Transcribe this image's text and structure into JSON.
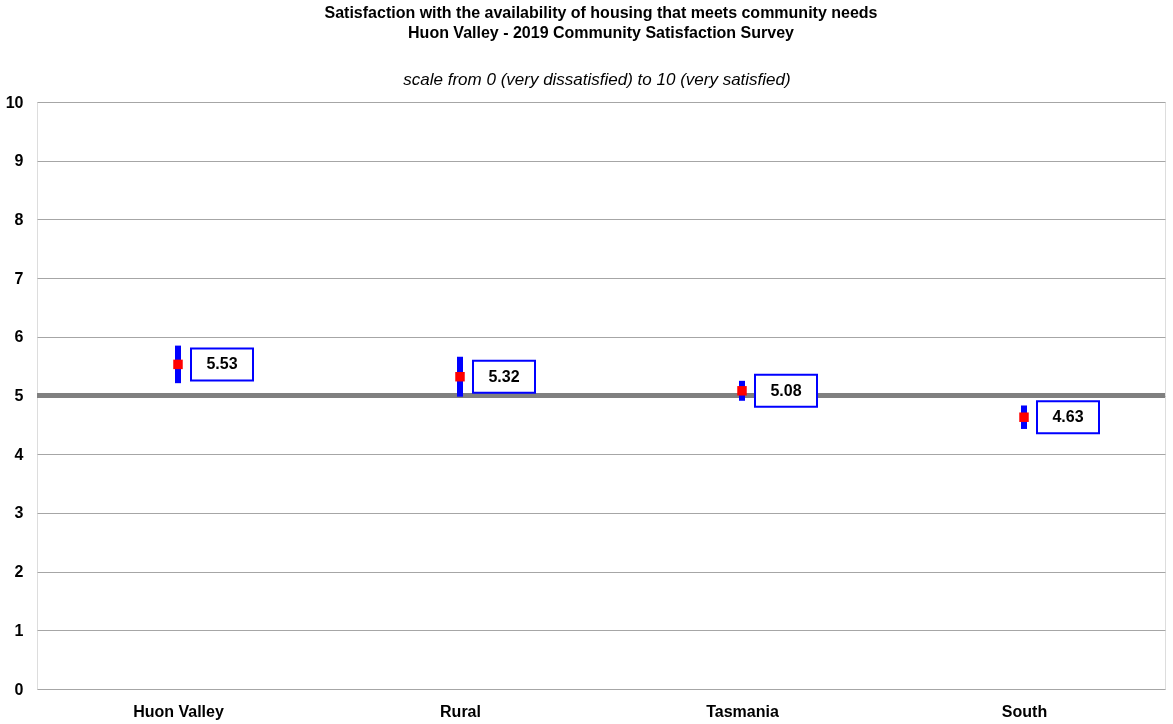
{
  "chart_data": {
    "type": "scatter",
    "title": "Satisfaction  with the availability  of housing that meets community needs",
    "subtitle": "Huon Valley - 2019 Community Satisfaction  Survey",
    "annotations": [
      "scale from 0 (very dissatisfied) to 10 (very satisfied)"
    ],
    "categories": [
      "Huon Valley",
      "Rural",
      "Tasmania",
      "South"
    ],
    "series": [
      {
        "color": "#ff0000",
        "values": [
          5.53,
          5.32,
          5.08,
          4.63
        ],
        "errors": [
          0.32,
          0.34,
          0.17,
          0.2
        ]
      }
    ],
    "ylim": [
      0,
      10
    ],
    "yticks": [
      0,
      1,
      2,
      3,
      4,
      5,
      6,
      7,
      8,
      9,
      10
    ],
    "grid": "y",
    "marker": "square",
    "data_labels": true,
    "ref_lines": [
      {
        "axis": "y",
        "value": 5,
        "color": "#808080"
      }
    ]
  }
}
